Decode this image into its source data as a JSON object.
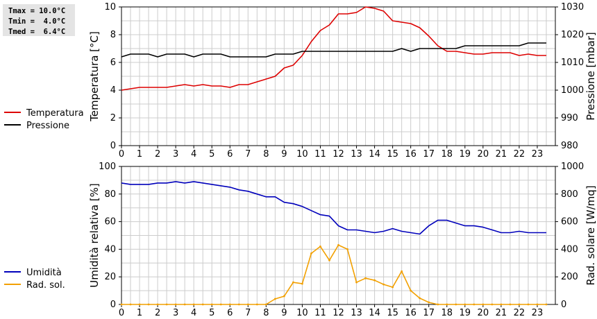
{
  "stats": {
    "lines": [
      "Tmax = 10.0°C",
      "Tmin =  4.0°C",
      "Tmed =  6.4°C"
    ]
  },
  "colors": {
    "temperature": "#dd0000",
    "pressure": "#000000",
    "humidity": "#0000bb",
    "solar": "#f2a000",
    "grid": "#cccccc"
  },
  "chart_data": [
    {
      "type": "line",
      "title": "",
      "xlabel": "",
      "ylabel": "Temperatura [°C]",
      "y2label": "Pressione [mbar]",
      "xlim": [
        0,
        24
      ],
      "ylim": [
        0,
        10
      ],
      "y2lim": [
        980,
        1030
      ],
      "xticks": [
        0,
        1,
        2,
        3,
        4,
        5,
        6,
        7,
        8,
        9,
        10,
        11,
        12,
        13,
        14,
        15,
        16,
        17,
        18,
        19,
        20,
        21,
        22,
        23
      ],
      "yticks": [
        0,
        2,
        4,
        6,
        8,
        10
      ],
      "y2ticks": [
        980,
        990,
        1000,
        1010,
        1020,
        1030
      ],
      "legend_position": "left",
      "grid": true,
      "series": [
        {
          "name": "Temperatura",
          "axis": "left",
          "color": "#dd0000",
          "x": [
            0,
            0.5,
            1,
            1.5,
            2,
            2.5,
            3,
            3.5,
            4,
            4.5,
            5,
            5.5,
            6,
            6.5,
            7,
            7.5,
            8,
            8.5,
            9,
            9.5,
            10,
            10.5,
            11,
            11.5,
            12,
            12.5,
            13,
            13.5,
            14,
            14.5,
            15,
            15.5,
            16,
            16.5,
            17,
            17.5,
            18,
            18.5,
            19,
            19.5,
            20,
            20.5,
            21,
            21.5,
            22,
            22.5,
            23,
            23.5
          ],
          "values": [
            4.0,
            4.1,
            4.2,
            4.2,
            4.2,
            4.2,
            4.3,
            4.4,
            4.3,
            4.4,
            4.3,
            4.3,
            4.2,
            4.4,
            4.4,
            4.6,
            4.8,
            5.0,
            5.6,
            5.8,
            6.5,
            7.5,
            8.3,
            8.7,
            9.5,
            9.5,
            9.6,
            10.0,
            9.9,
            9.7,
            9.0,
            8.9,
            8.8,
            8.5,
            7.9,
            7.2,
            6.8,
            6.8,
            6.7,
            6.6,
            6.6,
            6.7,
            6.7,
            6.7,
            6.5,
            6.6,
            6.5,
            6.5
          ]
        },
        {
          "name": "Pressione",
          "axis": "right",
          "color": "#000000",
          "x": [
            0,
            0.5,
            1,
            1.5,
            2,
            2.5,
            3,
            3.5,
            4,
            4.5,
            5,
            5.5,
            6,
            6.5,
            7,
            7.5,
            8,
            8.5,
            9,
            9.5,
            10,
            10.5,
            11,
            11.5,
            12,
            12.5,
            13,
            13.5,
            14,
            14.5,
            15,
            15.5,
            16,
            16.5,
            17,
            17.5,
            18,
            18.5,
            19,
            19.5,
            20,
            20.5,
            21,
            21.5,
            22,
            22.5,
            23,
            23.5
          ],
          "values": [
            1012,
            1013,
            1013,
            1013,
            1012,
            1013,
            1013,
            1013,
            1012,
            1013,
            1013,
            1013,
            1012,
            1012,
            1012,
            1012,
            1012,
            1013,
            1013,
            1013,
            1014,
            1014,
            1014,
            1014,
            1014,
            1014,
            1014,
            1014,
            1014,
            1014,
            1014,
            1015,
            1014,
            1015,
            1015,
            1015,
            1015,
            1015,
            1016,
            1016,
            1016,
            1016,
            1016,
            1016,
            1016,
            1017,
            1017,
            1017
          ]
        }
      ]
    },
    {
      "type": "line",
      "title": "",
      "xlabel": "",
      "ylabel": "Umidità relativa [%]",
      "y2label": "Rad. solare [W/mq]",
      "xlim": [
        0,
        24
      ],
      "ylim": [
        0,
        100
      ],
      "y2lim": [
        0,
        1000
      ],
      "xticks": [
        0,
        1,
        2,
        3,
        4,
        5,
        6,
        7,
        8,
        9,
        10,
        11,
        12,
        13,
        14,
        15,
        16,
        17,
        18,
        19,
        20,
        21,
        22,
        23
      ],
      "yticks": [
        0,
        20,
        40,
        60,
        80,
        100
      ],
      "y2ticks": [
        0,
        200,
        400,
        600,
        800,
        1000
      ],
      "legend_position": "left",
      "grid": true,
      "series": [
        {
          "name": "Umidità",
          "axis": "left",
          "color": "#0000bb",
          "x": [
            0,
            0.5,
            1,
            1.5,
            2,
            2.5,
            3,
            3.5,
            4,
            4.5,
            5,
            5.5,
            6,
            6.5,
            7,
            7.5,
            8,
            8.5,
            9,
            9.5,
            10,
            10.5,
            11,
            11.5,
            12,
            12.5,
            13,
            13.5,
            14,
            14.5,
            15,
            15.5,
            16,
            16.5,
            17,
            17.5,
            18,
            18.5,
            19,
            19.5,
            20,
            20.5,
            21,
            21.5,
            22,
            22.5,
            23,
            23.5
          ],
          "values": [
            88,
            87,
            87,
            87,
            88,
            88,
            89,
            88,
            89,
            88,
            87,
            86,
            85,
            83,
            82,
            80,
            78,
            78,
            74,
            73,
            71,
            68,
            65,
            64,
            57,
            54,
            54,
            53,
            52,
            53,
            55,
            53,
            52,
            51,
            57,
            61,
            61,
            59,
            57,
            57,
            56,
            54,
            52,
            52,
            53,
            52,
            52,
            52
          ]
        },
        {
          "name": "Rad. sol.",
          "axis": "right",
          "color": "#f2a000",
          "x": [
            0,
            0.5,
            1,
            1.5,
            2,
            2.5,
            3,
            3.5,
            4,
            4.5,
            5,
            5.5,
            6,
            6.5,
            7,
            7.5,
            8,
            8.5,
            9,
            9.5,
            10,
            10.5,
            11,
            11.5,
            12,
            12.5,
            13,
            13.5,
            14,
            14.5,
            15,
            15.5,
            16,
            16.5,
            17,
            17.5,
            18,
            18.5,
            19,
            19.5,
            20,
            20.5,
            21,
            21.5,
            22,
            22.5,
            23,
            23.5
          ],
          "values": [
            0,
            0,
            0,
            0,
            0,
            0,
            0,
            0,
            0,
            0,
            0,
            0,
            0,
            0,
            0,
            0,
            0,
            40,
            60,
            160,
            150,
            370,
            420,
            320,
            430,
            400,
            160,
            190,
            175,
            145,
            125,
            240,
            100,
            45,
            15,
            0,
            0,
            0,
            0,
            0,
            0,
            0,
            0,
            0,
            0,
            0,
            0,
            0
          ]
        }
      ]
    }
  ]
}
